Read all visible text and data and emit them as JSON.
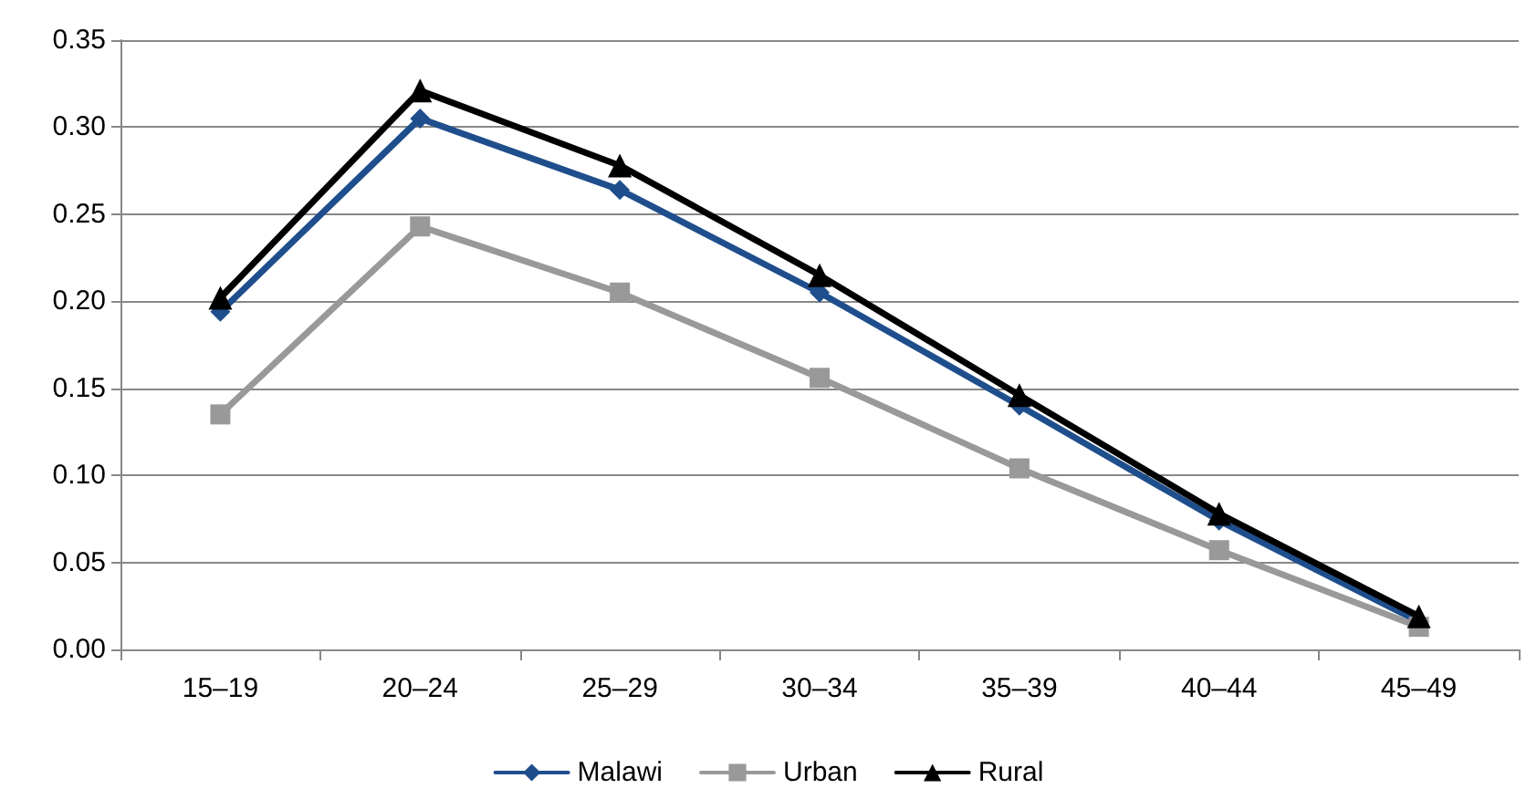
{
  "chart_data": {
    "type": "line",
    "categories": [
      "15–19",
      "20–24",
      "25–29",
      "30–34",
      "35–39",
      "40–44",
      "45–49"
    ],
    "series": [
      {
        "name": "Malawi",
        "color": "#1f4e8c",
        "marker": "diamond",
        "values": [
          0.194,
          0.305,
          0.264,
          0.205,
          0.14,
          0.074,
          0.016
        ]
      },
      {
        "name": "Urban",
        "color": "#999999",
        "marker": "square",
        "values": [
          0.135,
          0.243,
          0.205,
          0.156,
          0.104,
          0.057,
          0.013
        ]
      },
      {
        "name": "Rural",
        "color": "#000000",
        "marker": "triangle",
        "values": [
          0.202,
          0.321,
          0.278,
          0.215,
          0.146,
          0.078,
          0.019
        ]
      }
    ],
    "ylim": [
      0,
      0.35
    ],
    "yticks": [
      {
        "value": 0,
        "label": "0.00"
      },
      {
        "value": 0.05,
        "label": "0.05"
      },
      {
        "value": 0.1,
        "label": "0.10"
      },
      {
        "value": 0.15,
        "label": "0.15"
      },
      {
        "value": 0.2,
        "label": "0.20"
      },
      {
        "value": 0.25,
        "label": "0.25"
      },
      {
        "value": 0.3,
        "label": "0.30"
      },
      {
        "value": 0.35,
        "label": "0.35"
      }
    ],
    "grid": "y",
    "legend": "bottom",
    "line_style": "solid"
  }
}
